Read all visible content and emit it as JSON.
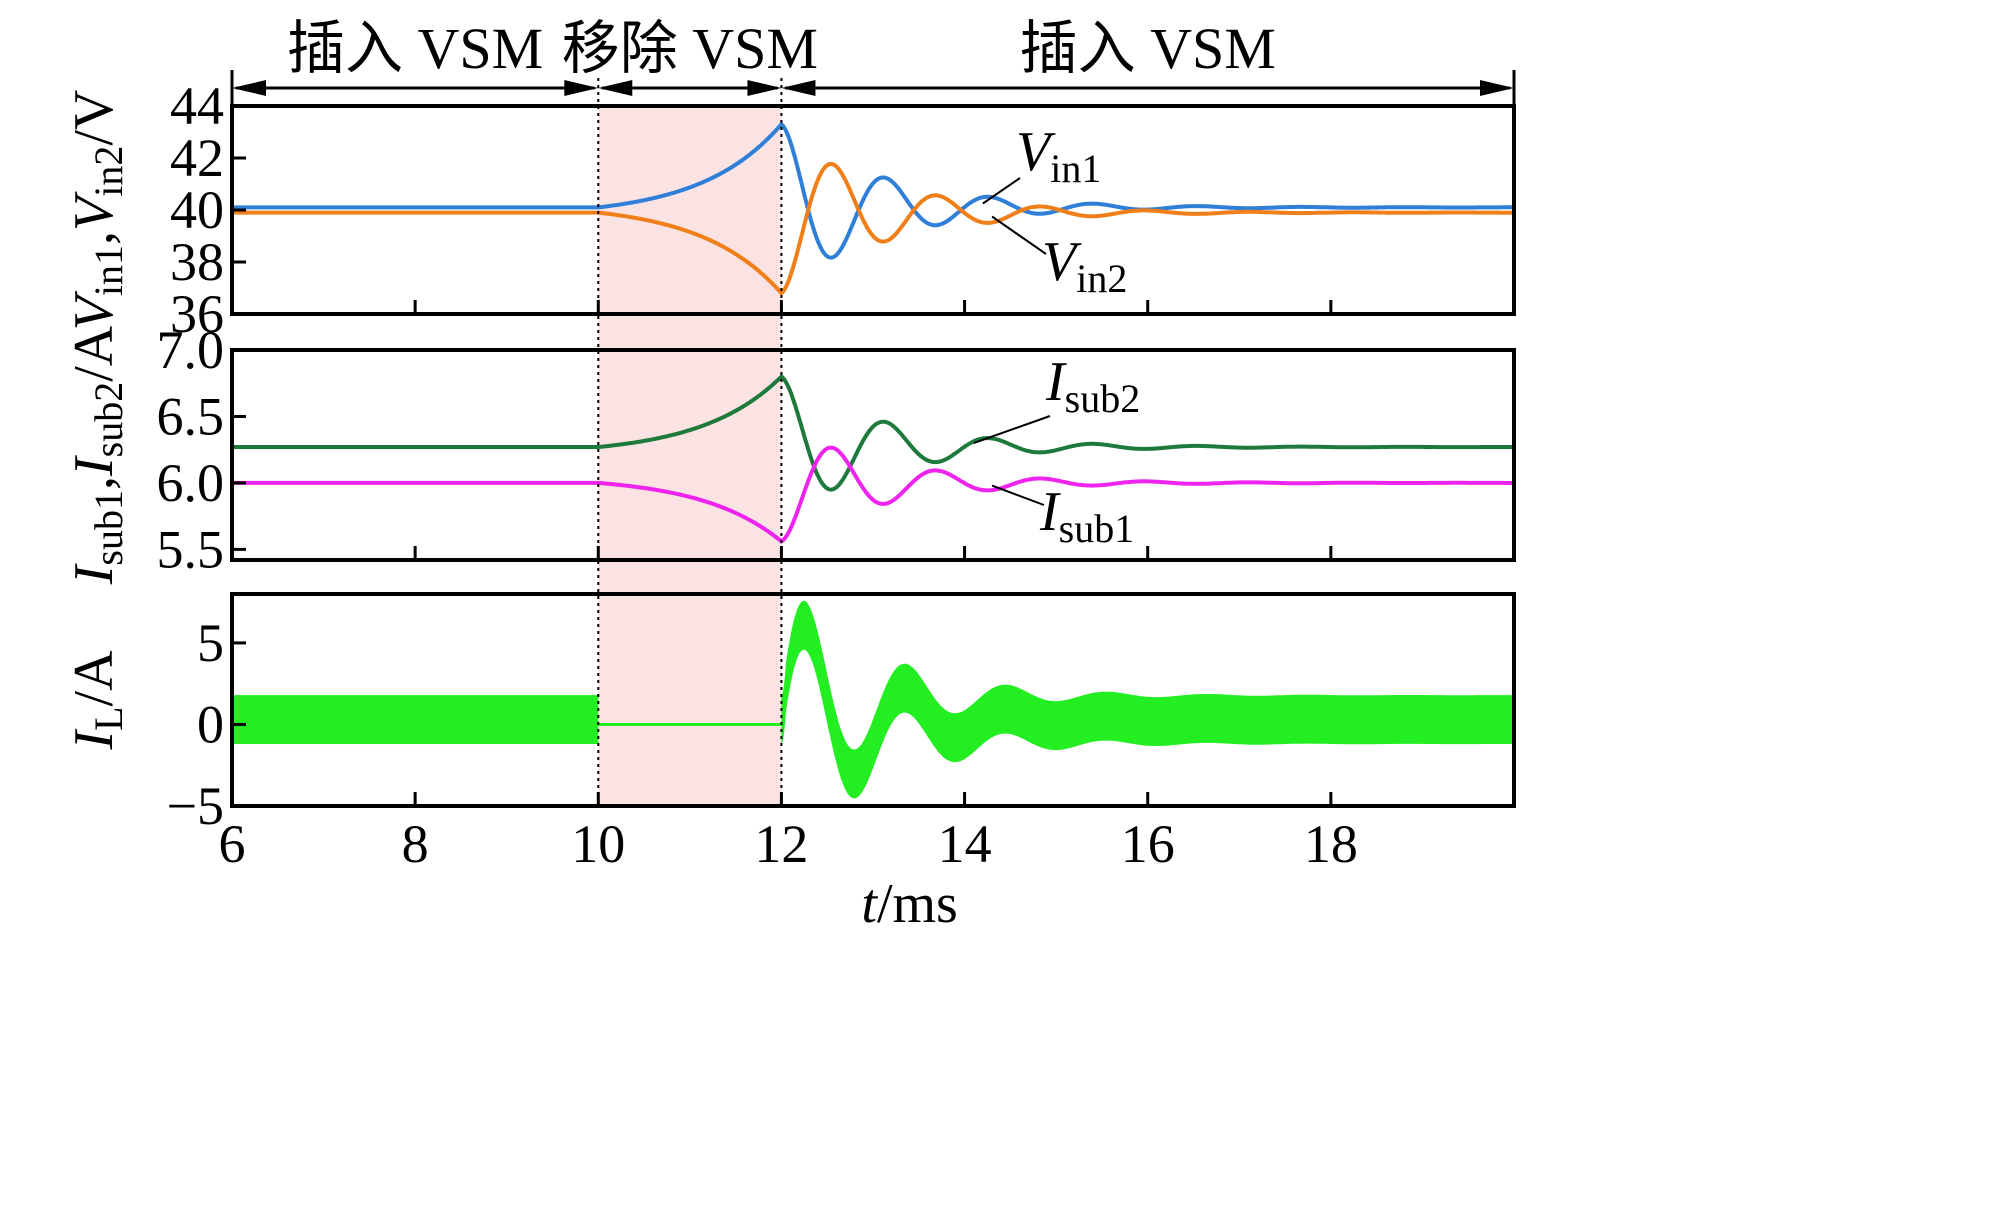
{
  "chart_data": {
    "type": "line",
    "x_axis": {
      "label_var": "t",
      "label_unit": "/ms",
      "range": [
        6,
        20
      ],
      "ticks": [
        6,
        8,
        10,
        12,
        14,
        16,
        18
      ]
    },
    "phases": [
      {
        "label": "插入 VSM",
        "x_start": 6,
        "x_end": 10
      },
      {
        "label": "移除 VSM",
        "x_start": 10,
        "x_end": 12
      },
      {
        "label": "插入 VSM",
        "x_start": 12,
        "x_end": 20
      }
    ],
    "shaded_region": {
      "x_start": 10,
      "x_end": 12,
      "color": "#fbe3e3"
    },
    "panels": [
      {
        "id": "voltage",
        "ylabel": {
          "v1": "V",
          "s1": "in1",
          "sep": ",",
          "v2": "V",
          "s2": "in2",
          "unit": "/V"
        },
        "yrange": [
          36,
          44
        ],
        "yticks": [
          36,
          38,
          40,
          42,
          44
        ],
        "ytick_labels": [
          "36",
          "38",
          "40",
          "42",
          "44"
        ],
        "series": [
          {
            "name_var": "V",
            "name_sub": "in1",
            "color": "#2f7ed8",
            "steady": 40.1,
            "t_remove": 10,
            "t_insert": 12,
            "val_at_insert": 43.3,
            "curve": 2.3,
            "tau_decay": 1.1,
            "period": 0.57,
            "final": 40.1
          },
          {
            "name_var": "V",
            "name_sub": "in2",
            "color": "#f07f19",
            "steady": 39.9,
            "t_remove": 10,
            "t_insert": 12,
            "val_at_insert": 36.8,
            "curve": 2.3,
            "tau_decay": 1.1,
            "period": 0.57,
            "final": 39.9
          }
        ]
      },
      {
        "id": "current",
        "ylabel": {
          "v1": "I",
          "s1": "sub1",
          "sep": ",",
          "v2": "I",
          "s2": "sub2",
          "unit": "/A"
        },
        "yrange": [
          5.42,
          7.0
        ],
        "yticks": [
          5.5,
          6.0,
          6.5,
          7.0
        ],
        "ytick_labels": [
          "5.5",
          "6.0",
          "6.5",
          "7.0"
        ],
        "series": [
          {
            "name_var": "I",
            "name_sub": "sub2",
            "color": "#1e7a3c",
            "steady": 6.27,
            "t_remove": 10,
            "t_insert": 12,
            "val_at_insert": 6.8,
            "curve": 2.3,
            "tau_decay": 1.1,
            "period": 0.57,
            "final": 6.27
          },
          {
            "name_var": "I",
            "name_sub": "sub1",
            "color": "#ee24ee",
            "steady": 6.0,
            "t_remove": 10,
            "t_insert": 12,
            "val_at_insert": 5.56,
            "curve": 2.3,
            "tau_decay": 1.1,
            "period": 0.57,
            "final": 6.0
          }
        ]
      },
      {
        "id": "inductor",
        "ylabel": {
          "v1": "I",
          "s1": "L",
          "unit": "/A"
        },
        "yrange": [
          -5,
          8
        ],
        "yticks": [
          -5,
          0,
          5
        ],
        "ytick_labels": [
          "−5",
          "0",
          "5"
        ],
        "series": [
          {
            "name": "I_L",
            "color": "#22ee22",
            "band_before": [
              -1.2,
              1.8
            ],
            "value_removed": 0.0,
            "center": 0.3,
            "halfwidth": 1.5,
            "first_peak": 7.8,
            "tau_decay": 1.0,
            "period": 0.55
          }
        ]
      }
    ]
  }
}
